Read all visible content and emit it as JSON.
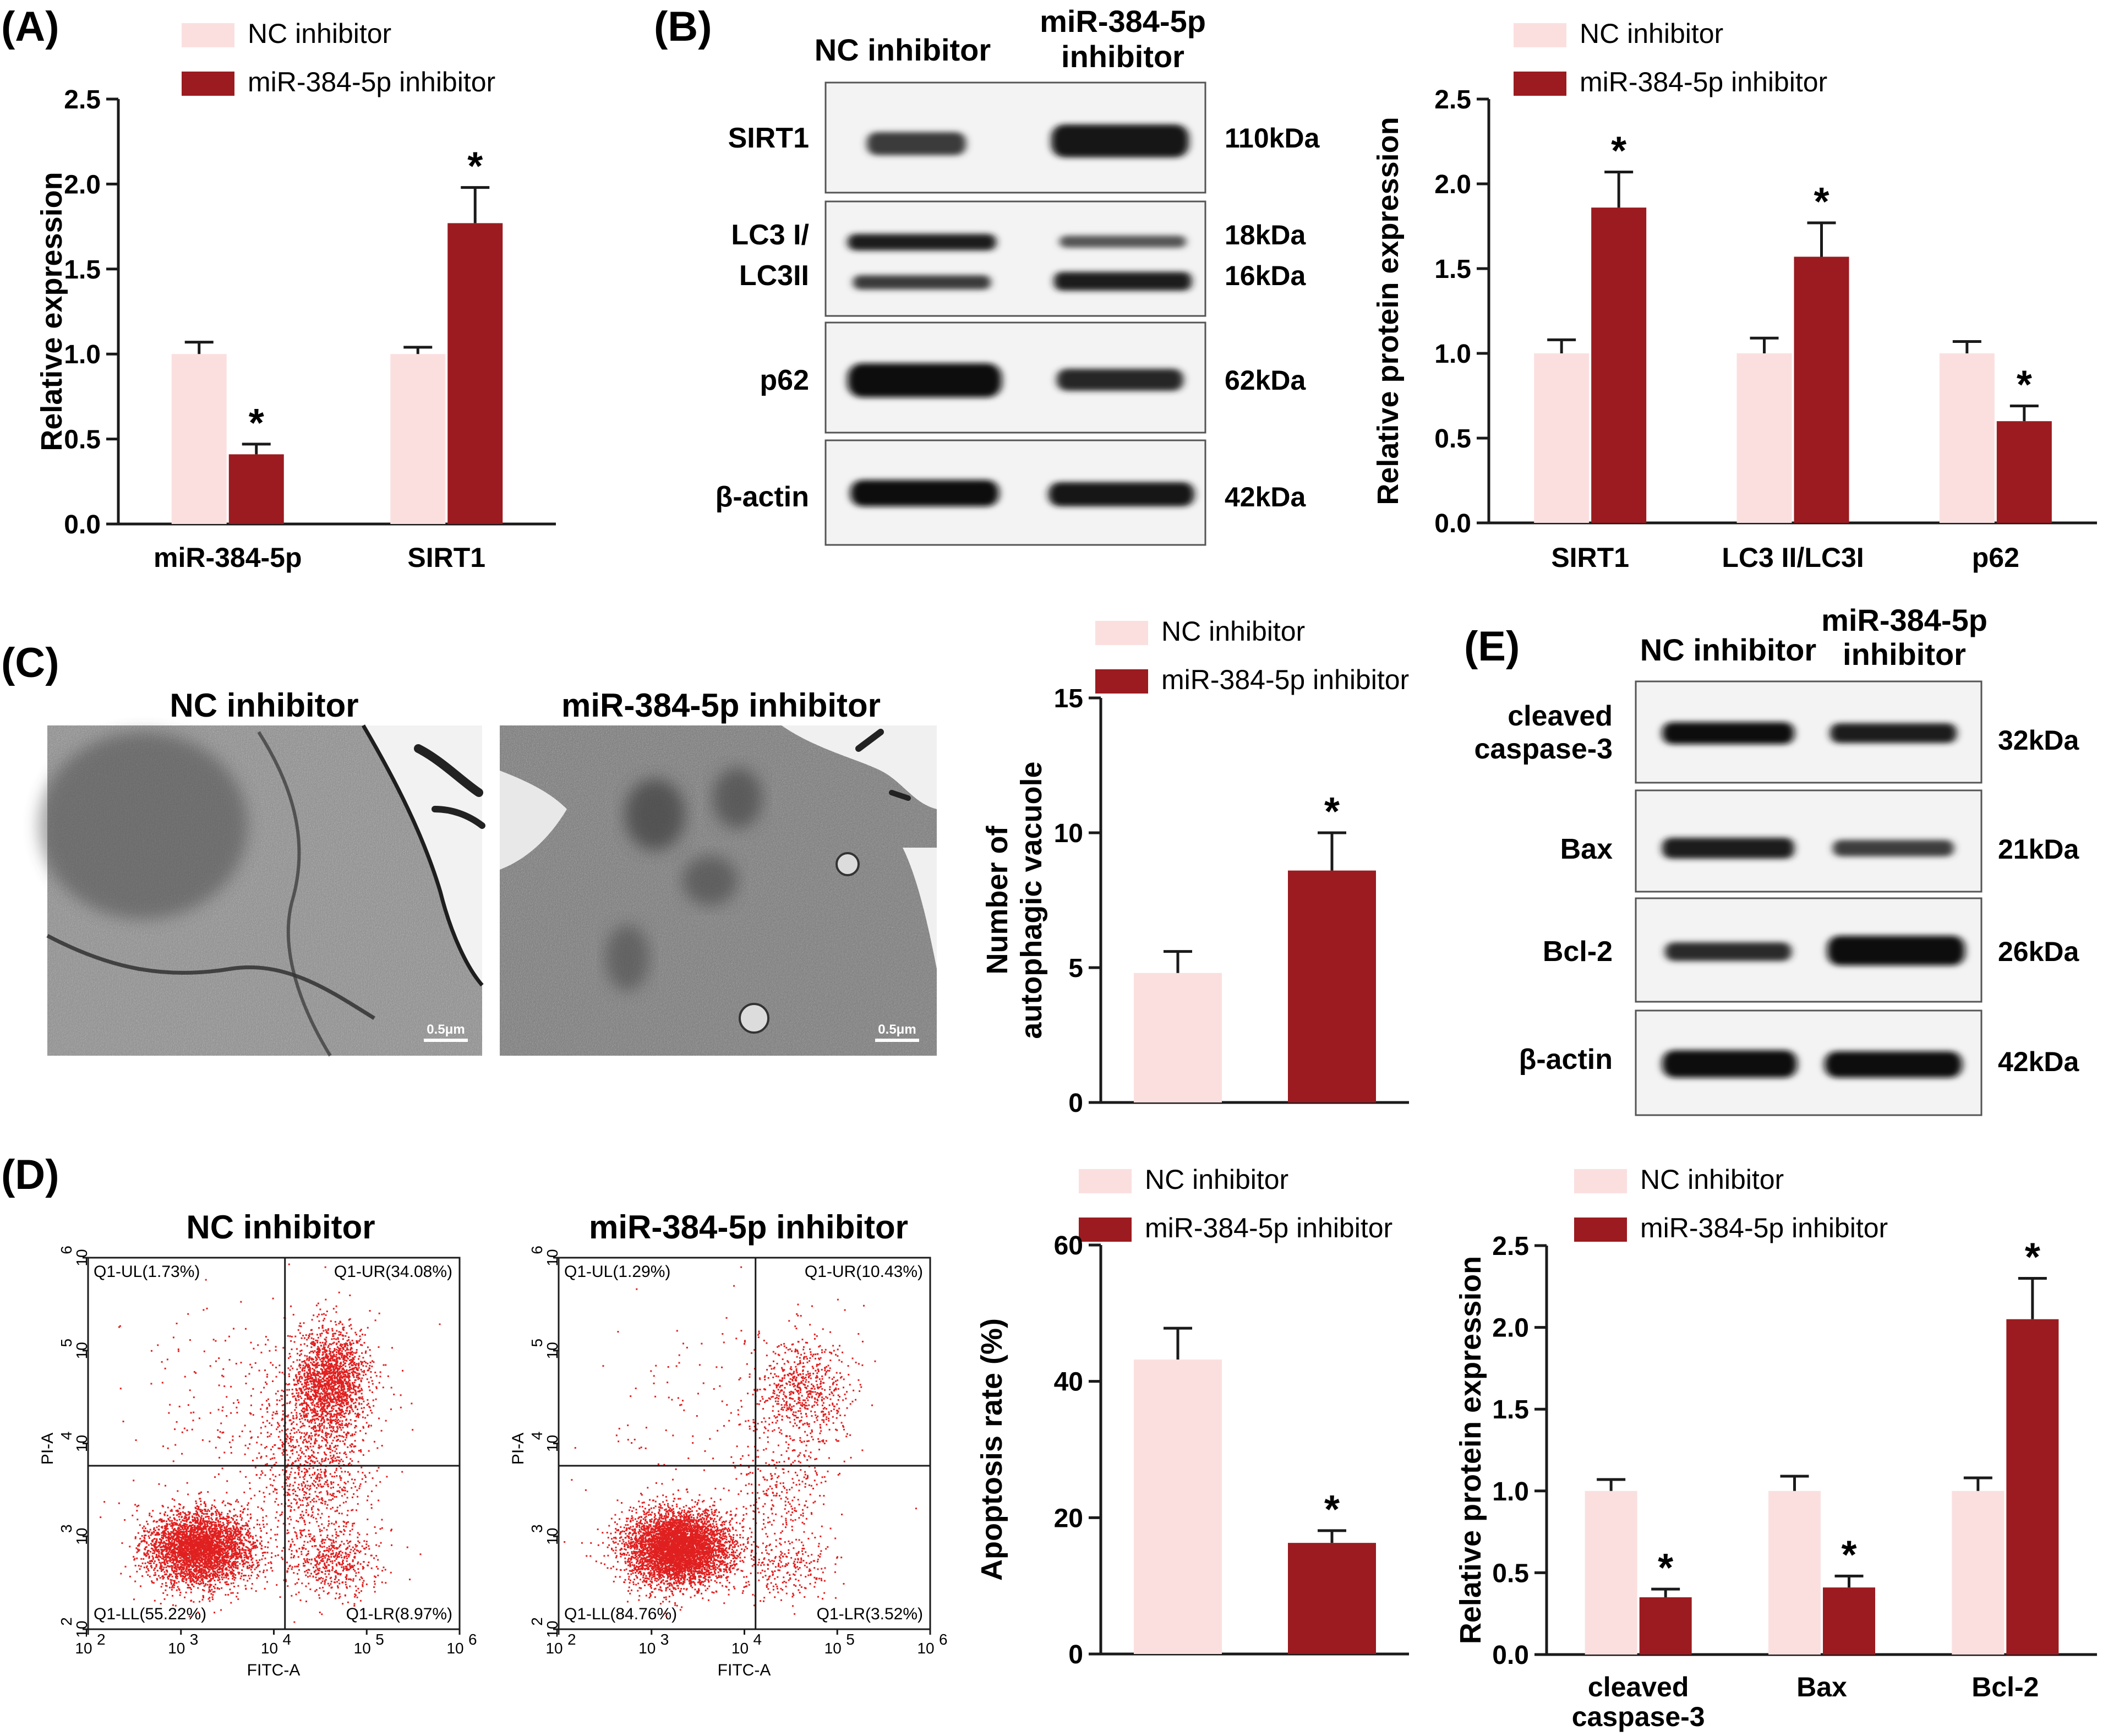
{
  "colors": {
    "nc": "#fbdfdf",
    "mir": "#9b1b20",
    "dot": "#e02020",
    "axis": "#1a1a1a"
  },
  "legend": {
    "nc": "NC inhibitor",
    "mir": "miR-384-5p inhibitor"
  },
  "panels": {
    "A": {
      "label": "(A)"
    },
    "B": {
      "label": "(B)",
      "col_nc": "NC inhibitor",
      "col_mir_1": "miR-384-5p",
      "col_mir_2": "inhibitor",
      "rows": [
        {
          "name_1": "SIRT1",
          "name_2": "",
          "kda_1": "110kDa",
          "kda_2": ""
        },
        {
          "name_1": "LC3 I/",
          "name_2": "LC3II",
          "kda_1": "18kDa",
          "kda_2": "16kDa"
        },
        {
          "name_1": "p62",
          "name_2": "",
          "kda_1": "62kDa",
          "kda_2": ""
        },
        {
          "name_1": "β-actin",
          "name_2": "",
          "kda_1": "42kDa",
          "kda_2": ""
        }
      ]
    },
    "C": {
      "label": "(C)",
      "img_title_nc": "NC inhibitor",
      "img_title_mir": "miR-384-5p inhibitor",
      "scale_bar": "0.5μm"
    },
    "D": {
      "label": "(D)",
      "title_nc": "NC inhibitor",
      "title_mir": "miR-384-5p inhibitor",
      "x_axis": "FITC-A",
      "y_axis": "PI-A",
      "nc_quadrants": {
        "ul": "Q1-UL(1.73%)",
        "ur": "Q1-UR(34.08%)",
        "ll": "Q1-LL(55.22%)",
        "lr": "Q1-LR(8.97%)"
      },
      "mir_quadrants": {
        "ul": "Q1-UL(1.29%)",
        "ur": "Q1-UR(10.43%)",
        "ll": "Q1-LL(84.76%)",
        "lr": "Q1-LR(3.52%)"
      },
      "log_ticks": [
        "10",
        "10",
        "10",
        "10",
        "10"
      ],
      "log_exps": [
        "2",
        "3",
        "4",
        "5",
        "6"
      ]
    },
    "E": {
      "label": "(E)",
      "col_nc": "NC inhibitor",
      "col_mir_1": "miR-384-5p",
      "col_mir_2": "inhibitor",
      "rows": [
        {
          "name_1": "cleaved",
          "name_2": "caspase-3",
          "kda_1": "32kDa"
        },
        {
          "name_1": "Bax",
          "name_2": "",
          "kda_1": "21kDa"
        },
        {
          "name_1": "Bcl-2",
          "name_2": "",
          "kda_1": "26kDa"
        },
        {
          "name_1": "β-actin",
          "name_2": "",
          "kda_1": "42kDa"
        }
      ]
    }
  },
  "chart_data": [
    {
      "id": "A",
      "type": "bar",
      "title": "",
      "xlabel": "",
      "ylabel": "Relative expression",
      "ylim": [
        0,
        2.5
      ],
      "yticks": [
        "0.0",
        "0.5",
        "1.0",
        "1.5",
        "2.0",
        "2.5"
      ],
      "categories": [
        "miR-384-5p",
        "SIRT1"
      ],
      "series": [
        {
          "name": "NC inhibitor",
          "values": [
            1.0,
            1.0
          ],
          "errors": [
            0.07,
            0.04
          ],
          "stars": [
            "",
            ""
          ]
        },
        {
          "name": "miR-384-5p inhibitor",
          "values": [
            0.41,
            1.77
          ],
          "errors": [
            0.06,
            0.21
          ],
          "stars": [
            "*",
            "*"
          ]
        }
      ]
    },
    {
      "id": "B",
      "type": "bar",
      "title": "",
      "xlabel": "",
      "ylabel": "Relative protein expression",
      "ylim": [
        0,
        2.5
      ],
      "yticks": [
        "0.0",
        "0.5",
        "1.0",
        "1.5",
        "2.0",
        "2.5"
      ],
      "categories": [
        "SIRT1",
        "LC3 II/LC3I",
        "p62"
      ],
      "series": [
        {
          "name": "NC inhibitor",
          "values": [
            1.0,
            1.0,
            1.0
          ],
          "errors": [
            0.08,
            0.09,
            0.07
          ],
          "stars": [
            "",
            "",
            ""
          ]
        },
        {
          "name": "miR-384-5p inhibitor",
          "values": [
            1.86,
            1.57,
            0.6
          ],
          "errors": [
            0.21,
            0.2,
            0.09
          ],
          "stars": [
            "*",
            "*",
            "*"
          ]
        }
      ]
    },
    {
      "id": "C",
      "type": "bar",
      "title": "",
      "xlabel": "",
      "ylabel": "Number of autophagic vacuole",
      "ylabel_1": "Number of",
      "ylabel_2": "autophagic vacuole",
      "ylim": [
        0,
        15
      ],
      "yticks": [
        "0",
        "5",
        "10",
        "15"
      ],
      "categories": [
        "NC inhibitor",
        "miR-384-5p inhibitor"
      ],
      "series": [
        {
          "name": "value",
          "values": [
            4.8,
            8.6
          ],
          "errors": [
            0.8,
            1.4
          ],
          "stars": [
            "",
            "*"
          ]
        }
      ]
    },
    {
      "id": "D",
      "type": "bar",
      "title": "",
      "xlabel": "",
      "ylabel": "Apoptosis rate (%)",
      "ylim": [
        0,
        60
      ],
      "yticks": [
        "0",
        "20",
        "40",
        "60"
      ],
      "categories": [
        "NC inhibitor",
        "miR-384-5p inhibitor"
      ],
      "series": [
        {
          "name": "value",
          "values": [
            43.2,
            16.3
          ],
          "errors": [
            4.6,
            1.8
          ],
          "stars": [
            "",
            "*"
          ]
        }
      ]
    },
    {
      "id": "E",
      "type": "bar",
      "title": "",
      "xlabel": "",
      "ylabel": "Relative protein expression",
      "ylim": [
        0,
        2.5
      ],
      "yticks": [
        "0.0",
        "0.5",
        "1.0",
        "1.5",
        "2.0",
        "2.5"
      ],
      "categories": [
        "cleaved caspase-3",
        "Bax",
        "Bcl-2"
      ],
      "category_lines": [
        [
          "cleaved",
          "caspase-3"
        ],
        [
          "Bax"
        ],
        [
          "Bcl-2"
        ]
      ],
      "series": [
        {
          "name": "NC inhibitor",
          "values": [
            1.0,
            1.0,
            1.0
          ],
          "errors": [
            0.07,
            0.09,
            0.08
          ],
          "stars": [
            "",
            "",
            ""
          ]
        },
        {
          "name": "miR-384-5p inhibitor",
          "values": [
            0.35,
            0.41,
            2.05
          ],
          "errors": [
            0.05,
            0.07,
            0.25
          ],
          "stars": [
            "*",
            "*",
            "*"
          ]
        }
      ]
    }
  ]
}
